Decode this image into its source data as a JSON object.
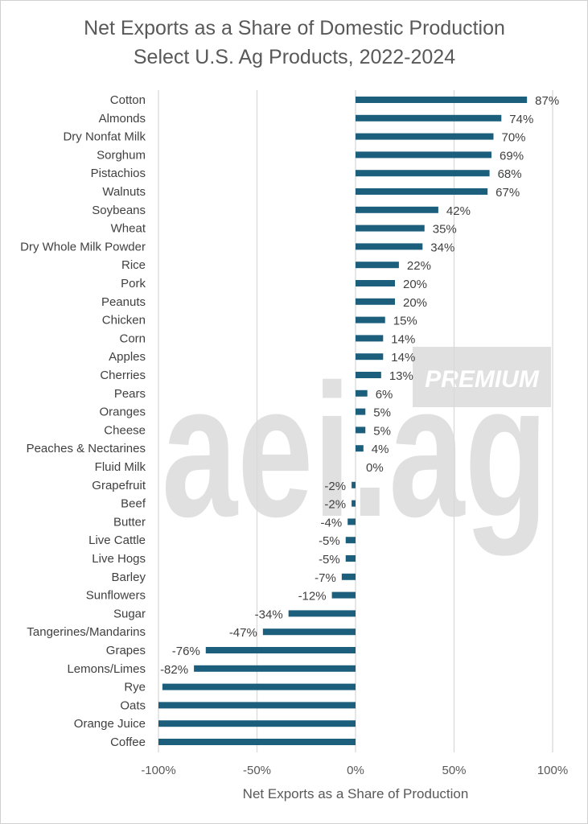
{
  "chart_data": {
    "type": "bar",
    "orientation": "horizontal",
    "title_line1": "Net Exports as a Share of Domestic Production",
    "title_line2": "Select U.S. Ag Products, 2022-2024",
    "xlabel": "Net Exports as a Share of Production",
    "ylabel": "",
    "xlim": [
      -100,
      100
    ],
    "xticks": [
      -100,
      -50,
      0,
      50,
      100
    ],
    "xtick_labels": [
      "-100%",
      "-50%",
      "0%",
      "50%",
      "100%"
    ],
    "grid": "vertical",
    "bar_color": "#1c5f7d",
    "categories": [
      "Cotton",
      "Almonds",
      "Dry Nonfat Milk",
      "Sorghum",
      "Pistachios",
      "Walnuts",
      "Soybeans",
      "Wheat",
      "Dry Whole Milk Powder",
      "Rice",
      "Pork",
      "Peanuts",
      "Chicken",
      "Corn",
      "Apples",
      "Cherries",
      "Pears",
      "Oranges",
      "Cheese",
      "Peaches & Nectarines",
      "Fluid Milk",
      "Grapefruit",
      "Beef",
      "Butter",
      "Live Cattle",
      "Live Hogs",
      "Barley",
      "Sunflowers",
      "Sugar",
      "Tangerines/Mandarins",
      "Grapes",
      "Lemons/Limes",
      "Rye",
      "Oats",
      "Orange Juice",
      "Coffee"
    ],
    "values": [
      87,
      74,
      70,
      69,
      68,
      67,
      42,
      35,
      34,
      22,
      20,
      20,
      15,
      14,
      14,
      13,
      6,
      5,
      5,
      4,
      0,
      -2,
      -2,
      -4,
      -5,
      -5,
      -7,
      -12,
      -34,
      -47,
      -76,
      -82,
      -98,
      -100,
      -100,
      -100
    ],
    "data_labels": [
      "87%",
      "74%",
      "70%",
      "69%",
      "68%",
      "67%",
      "42%",
      "35%",
      "34%",
      "22%",
      "20%",
      "20%",
      "15%",
      "14%",
      "14%",
      "13%",
      "6%",
      "5%",
      "5%",
      "4%",
      "0%",
      "-2%",
      "-2%",
      "-4%",
      "-5%",
      "-5%",
      "-7%",
      "-12%",
      "-34%",
      "-47%",
      "-76%",
      "-82%",
      "",
      "",
      "",
      ""
    ]
  },
  "watermark": {
    "text": "aei.ag",
    "badge": "PREMIUM",
    "color": "#e0e0e0"
  }
}
